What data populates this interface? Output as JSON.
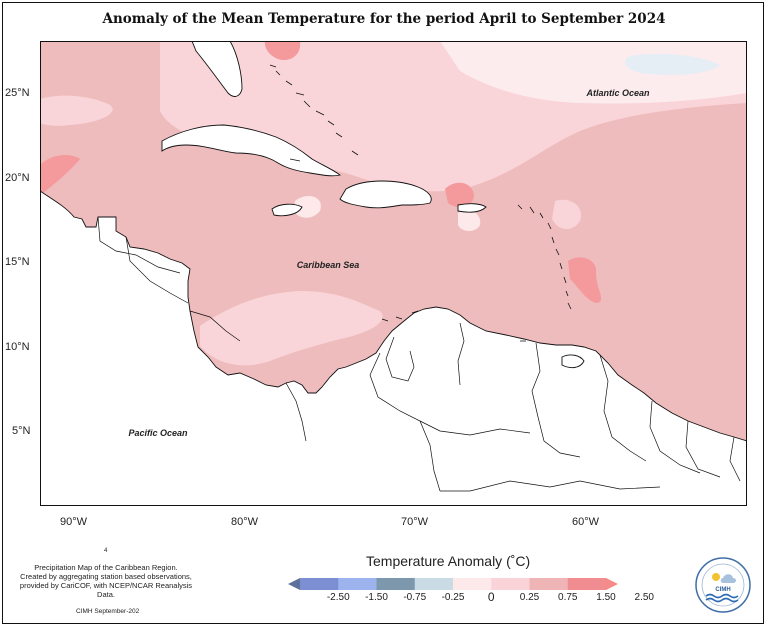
{
  "title": "Anomaly of the Mean Temperature for the period April to September 2024",
  "map_labels": {
    "atlantic": "Atlantic Ocean",
    "caribbean": "Caribbean Sea",
    "pacific": "Pacific Ocean"
  },
  "y_ticks": [
    "25°N",
    "20°N",
    "15°N",
    "10°N",
    "5°N"
  ],
  "x_ticks": [
    "90°W",
    "80°W",
    "70°W",
    "60°W"
  ],
  "caption": {
    "line1": "Precipitation Map of the Caribbean Region.",
    "line2": "Created by aggregating station based observations,",
    "line3": "provided by CariCOF, with NCEP/NCAR Reanalysis Data.",
    "footer": "CIMH September-202",
    "stray": "4"
  },
  "legend": {
    "title": "Temperature Anomaly (˚C)",
    "labels": [
      "-2.50",
      "-1.50",
      "-0.75",
      "-0.25",
      "0",
      "0.25",
      "0.75",
      "1.50",
      "2.50"
    ],
    "colors": [
      "#5e6f9a",
      "#7c8fd3",
      "#9cb3ee",
      "#7d98ad",
      "#c9dce6",
      "#fde9ea",
      "#f9d3d7",
      "#eeb4b6",
      "#f18d90",
      "#f58a86"
    ]
  },
  "logo": {
    "text": "CIMH"
  }
}
